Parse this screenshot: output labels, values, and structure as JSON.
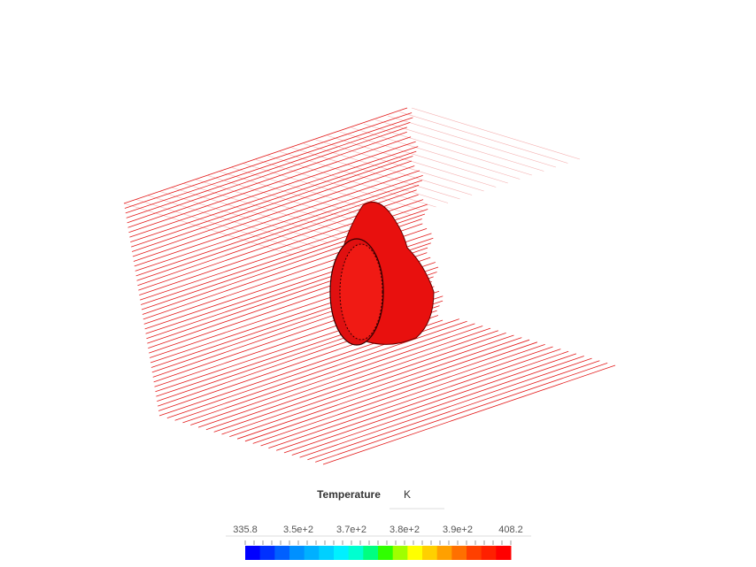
{
  "legend": {
    "title": "Temperature",
    "unit": "K",
    "ticks": [
      "335.8",
      "3.5e+2",
      "3.7e+2",
      "3.8e+2",
      "3.9e+2",
      "408.2"
    ]
  }
}
